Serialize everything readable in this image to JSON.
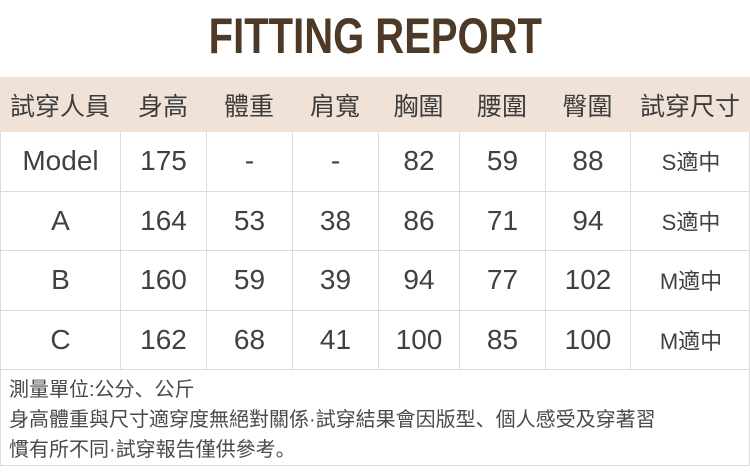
{
  "title": "FITTING REPORT",
  "theme": {
    "header_bg": "#f1e2d8",
    "border": "#dcdcdc",
    "title_color": "#4d3926",
    "header_text": "#3c3c3c",
    "cell_text": "#454040",
    "note_text": "#4a4a4a"
  },
  "table": {
    "columns": [
      "試穿人員",
      "身高",
      "體重",
      "肩寬",
      "胸圍",
      "腰圍",
      "臀圍",
      "試穿尺寸"
    ],
    "rows": [
      {
        "name": "Model",
        "height": "175",
        "weight": "-",
        "shoulder": "-",
        "chest": "82",
        "waist": "59",
        "hip": "88",
        "fit": "S適中"
      },
      {
        "name": "A",
        "height": "164",
        "weight": "53",
        "shoulder": "38",
        "chest": "86",
        "waist": "71",
        "hip": "94",
        "fit": "S適中"
      },
      {
        "name": "B",
        "height": "160",
        "weight": "59",
        "shoulder": "39",
        "chest": "94",
        "waist": "77",
        "hip": "102",
        "fit": "M適中"
      },
      {
        "name": "C",
        "height": "162",
        "weight": "68",
        "shoulder": "41",
        "chest": "100",
        "waist": "85",
        "hip": "100",
        "fit": "M適中"
      }
    ]
  },
  "notes": {
    "lines": [
      "測量單位:公分、公斤",
      "身高體重與尺寸適穿度無絕對關係·試穿結果會因版型、個人感受及穿著習",
      "慣有所不同·試穿報告僅供參考。"
    ]
  }
}
